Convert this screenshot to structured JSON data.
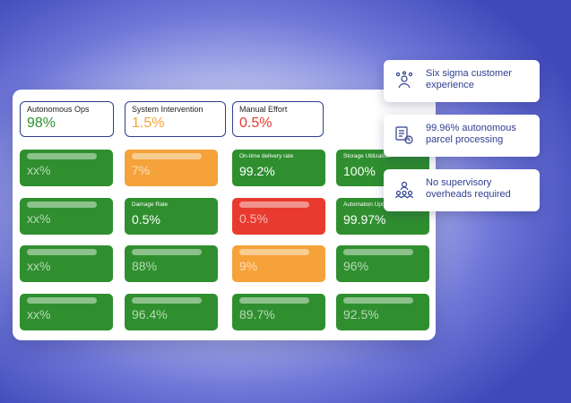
{
  "colors": {
    "green": "#2f8f2f",
    "orange": "#f5a23a",
    "red": "#e83a2e",
    "navy": "#2f3f8f"
  },
  "kpis": [
    {
      "label": "Autonomous Ops",
      "value": "98%",
      "color": "#2f8f2f"
    },
    {
      "label": "System Intervention",
      "value": "1.5%",
      "color": "#f5a23a"
    },
    {
      "label": "Manual Effort",
      "value": "0.5%",
      "color": "#e83a2e"
    }
  ],
  "tiles": [
    {
      "label": "",
      "value": "xx%",
      "status": "green"
    },
    {
      "label": "",
      "value": "7%",
      "status": "orange"
    },
    {
      "label": "On-time delivery rate",
      "value": "99.2%",
      "status": "green"
    },
    {
      "label": "Storage Utilization",
      "value": "100%",
      "status": "green"
    },
    {
      "label": "",
      "value": "xx%",
      "status": "green"
    },
    {
      "label": "Damage Rate",
      "value": "0.5%",
      "status": "green"
    },
    {
      "label": "",
      "value": "0.5%",
      "status": "red"
    },
    {
      "label": "Automation Uptime",
      "value": "99.97%",
      "status": "green"
    },
    {
      "label": "",
      "value": "xx%",
      "status": "green"
    },
    {
      "label": "",
      "value": "88%",
      "status": "green"
    },
    {
      "label": "",
      "value": "9%",
      "status": "orange"
    },
    {
      "label": "",
      "value": "96%",
      "status": "green"
    },
    {
      "label": "",
      "value": "xx%",
      "status": "green"
    },
    {
      "label": "",
      "value": "96.4%",
      "status": "green"
    },
    {
      "label": "",
      "value": "89.7%",
      "status": "green"
    },
    {
      "label": "",
      "value": "92.5%",
      "status": "green"
    }
  ],
  "notes": [
    {
      "text": "Six sigma customer experience",
      "icon": "customer-experience-icon"
    },
    {
      "text": "99.96% autonomous parcel processing",
      "icon": "parcel-processing-icon"
    },
    {
      "text": "No supervisory overheads required",
      "icon": "supervisory-team-icon"
    }
  ]
}
